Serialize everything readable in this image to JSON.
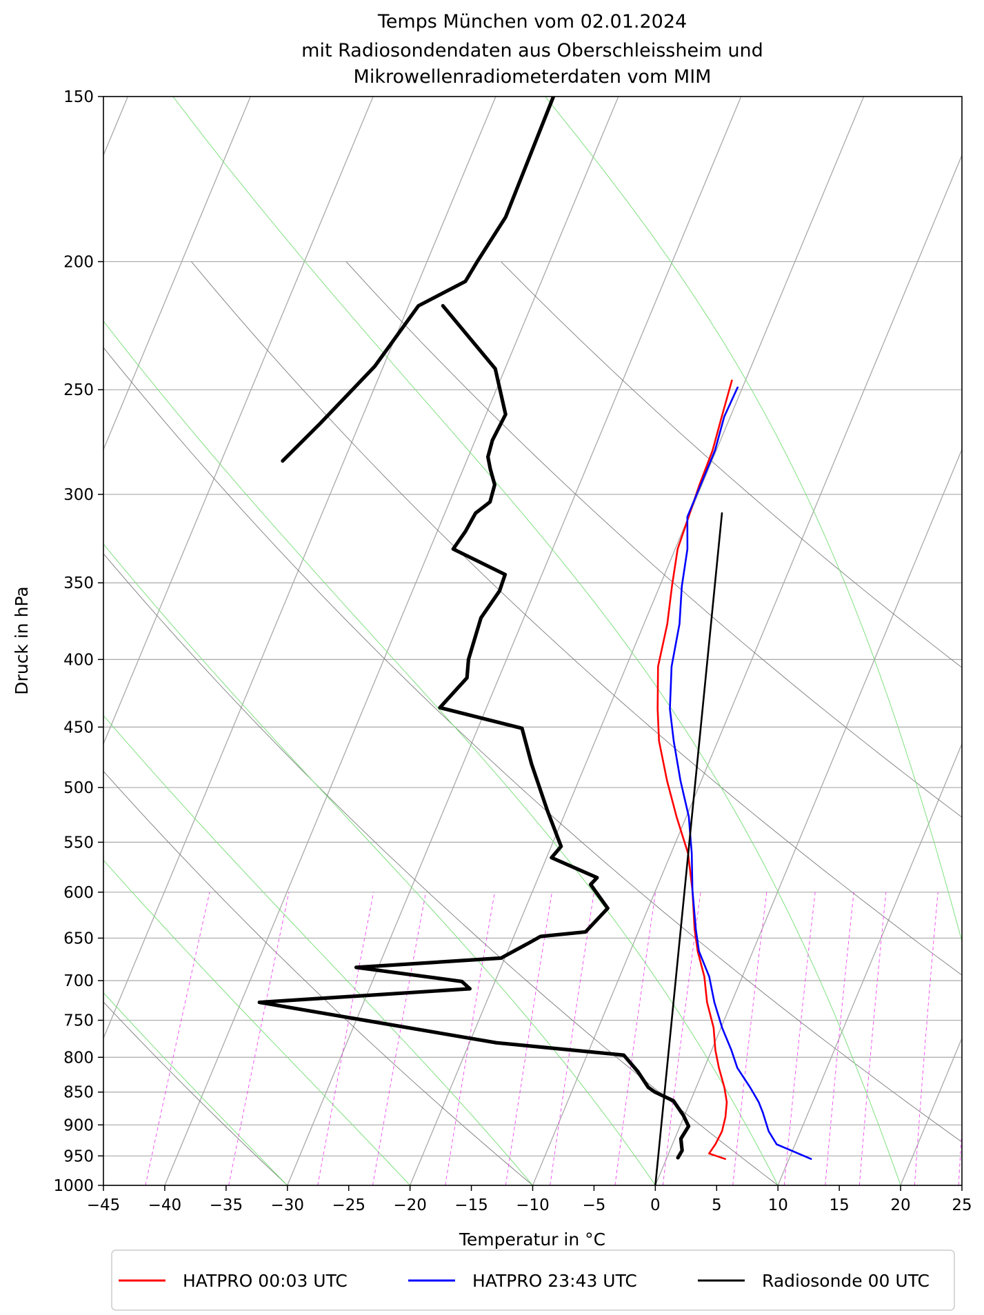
{
  "chart_data": {
    "type": "line",
    "title": [
      "Temps München vom 02.01.2024",
      "mit Radiosondendaten aus Oberschleissheim und",
      "Mikrowellenradiometerdaten vom MIM"
    ],
    "xlabel": "Temperatur in °C",
    "ylabel": "Druck in hPa",
    "xlim": [
      -45,
      25
    ],
    "ylim": [
      1000,
      150
    ],
    "y_scale": "log",
    "skew": "Skew-T (isotherms skewed)",
    "x_ticks": [
      "−45",
      "−40",
      "−35",
      "−30",
      "−25",
      "−20",
      "−15",
      "−10",
      "−5",
      "0",
      "5",
      "10",
      "15",
      "20",
      "25"
    ],
    "y_ticks": [
      "150",
      "200",
      "250",
      "300",
      "350",
      "400",
      "450",
      "500",
      "550",
      "600",
      "650",
      "700",
      "750",
      "800",
      "850",
      "900",
      "950",
      "1000"
    ],
    "grid": true,
    "legend_position": "bottom",
    "series": [
      {
        "name": "HATPRO 00:03 UTC",
        "color": "#ff0000",
        "points": [
          [
            4.8,
            955
          ],
          [
            3.3,
            946
          ],
          [
            3.5,
            931
          ],
          [
            3.6,
            910
          ],
          [
            3.4,
            888
          ],
          [
            3.0,
            865
          ],
          [
            2.3,
            843
          ],
          [
            1.2,
            815
          ],
          [
            0.3,
            790
          ],
          [
            -0.6,
            760
          ],
          [
            -2.0,
            727
          ],
          [
            -3.1,
            695
          ],
          [
            -4.5,
            665
          ],
          [
            -5.5,
            640
          ],
          [
            -7.0,
            598
          ],
          [
            -8.6,
            561
          ],
          [
            -10.8,
            526
          ],
          [
            -12.8,
            494
          ],
          [
            -14.8,
            461
          ],
          [
            -16.0,
            436
          ],
          [
            -17.4,
            405
          ],
          [
            -18.1,
            376
          ],
          [
            -19.0,
            352
          ],
          [
            -19.8,
            330
          ],
          [
            -20.0,
            312
          ],
          [
            -20.2,
            295
          ],
          [
            -20.3,
            278
          ],
          [
            -20.7,
            262
          ],
          [
            -21.1,
            246
          ]
        ]
      },
      {
        "name": "HATPRO 23:43 UTC",
        "color": "#0000ff",
        "points": [
          [
            11.8,
            955
          ],
          [
            8.5,
            931
          ],
          [
            7.4,
            910
          ],
          [
            6.3,
            881
          ],
          [
            5.6,
            865
          ],
          [
            4.4,
            843
          ],
          [
            2.7,
            815
          ],
          [
            1.6,
            790
          ],
          [
            0.1,
            760
          ],
          [
            -1.4,
            727
          ],
          [
            -2.7,
            695
          ],
          [
            -4.4,
            665
          ],
          [
            -5.4,
            640
          ],
          [
            -7.0,
            598
          ],
          [
            -8.3,
            561
          ],
          [
            -9.8,
            526
          ],
          [
            -11.7,
            494
          ],
          [
            -13.6,
            461
          ],
          [
            -15.0,
            436
          ],
          [
            -16.3,
            405
          ],
          [
            -17.1,
            376
          ],
          [
            -18.2,
            352
          ],
          [
            -19.0,
            330
          ],
          [
            -20.1,
            312
          ],
          [
            -20.1,
            295
          ],
          [
            -20.1,
            278
          ],
          [
            -20.5,
            262
          ],
          [
            -20.4,
            249
          ]
        ]
      },
      {
        "name": "Radiosonde 00 UTC",
        "color": "#000000",
        "points": [
          [
            0.9,
            953
          ],
          [
            1.0,
            941
          ],
          [
            0.5,
            922
          ],
          [
            0.7,
            902
          ],
          [
            -0.1,
            885
          ],
          [
            -1.4,
            863
          ],
          [
            -3.2,
            850
          ],
          [
            -3.9,
            843
          ],
          [
            -5.3,
            820
          ],
          [
            -7.0,
            797
          ],
          [
            -17.8,
            780
          ],
          [
            -38.5,
            727
          ],
          [
            -21.8,
            710
          ],
          [
            -22.7,
            701
          ],
          [
            -31.8,
            684
          ],
          [
            -20.3,
            673
          ],
          [
            -18.6,
            656
          ],
          [
            -17.8,
            648
          ],
          [
            -14.3,
            643
          ],
          [
            -13.3,
            617
          ],
          [
            -15.5,
            592
          ],
          [
            -15.2,
            585
          ],
          [
            -19.6,
            565
          ],
          [
            -19.2,
            554
          ],
          [
            -21.5,
            521
          ],
          [
            -24.4,
            480
          ],
          [
            -26.4,
            451
          ],
          [
            -33.8,
            435
          ],
          [
            -32.6,
            413
          ],
          [
            -33.1,
            400
          ],
          [
            -33.5,
            372
          ],
          [
            -32.9,
            355
          ],
          [
            -33.0,
            345
          ],
          [
            -38.1,
            330
          ],
          [
            -37.7,
            320
          ],
          [
            -37.5,
            310
          ],
          [
            -36.7,
            304
          ],
          [
            -36.9,
            295
          ],
          [
            -37.8,
            287
          ],
          [
            -38.4,
            281
          ],
          [
            -38.6,
            273
          ],
          [
            -38.4,
            261
          ],
          [
            -40.8,
            241
          ],
          [
            -47.2,
            216
          ]
        ]
      },
      {
        "name": "",
        "color": "#000000",
        "points": [
          [
            0.0,
            1000
          ],
          [
            -17.4,
            310
          ]
        ]
      },
      {
        "name": "",
        "color": "#000000",
        "points": [
          [
            -45.3,
            150
          ],
          [
            -45.1,
            185
          ],
          [
            -45.9,
            200
          ],
          [
            -46.2,
            207
          ],
          [
            -49.2,
            216
          ],
          [
            -50.7,
            240
          ],
          [
            -53.2,
            265
          ],
          [
            -55.0,
            283
          ]
        ]
      }
    ]
  },
  "legend": {
    "items": [
      {
        "label": "HATPRO 00:03 UTC",
        "color": "#ff0000"
      },
      {
        "label": "HATPRO 23:43 UTC",
        "color": "#0000ff"
      },
      {
        "label": "Radiosonde 00 UTC",
        "color": "#000000"
      }
    ]
  }
}
